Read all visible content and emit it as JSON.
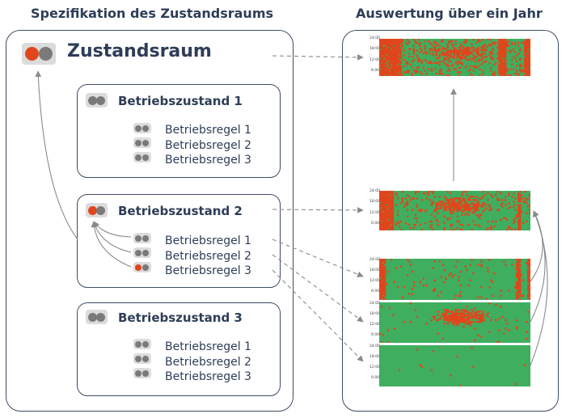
{
  "left_heading": "Spezifikation des Zustandsraums",
  "right_heading": "Auswertung über ein Jahr",
  "state_space": {
    "title": "Zustandsraum"
  },
  "states": [
    {
      "title": "Betriebszustand 1",
      "rules": [
        "Betriebsregel 1",
        "Betriebsregel 2",
        "Betriebsregel 3"
      ]
    },
    {
      "title": "Betriebszustand 2",
      "rules": [
        "Betriebsregel 1",
        "Betriebsregel 2",
        "Betriebsregel 3"
      ]
    },
    {
      "title": "Betriebszustand 3",
      "rules": [
        "Betriebsregel 1",
        "Betriebsregel 2",
        "Betriebsregel 3"
      ]
    }
  ],
  "heatmap_ticks": [
    "24:00",
    "18:00",
    "12:00",
    "6:00"
  ],
  "colors": {
    "red": "#e0461c",
    "green": "#3fae5f",
    "grey": "#7a7a7a",
    "line": "#3d4c66"
  }
}
